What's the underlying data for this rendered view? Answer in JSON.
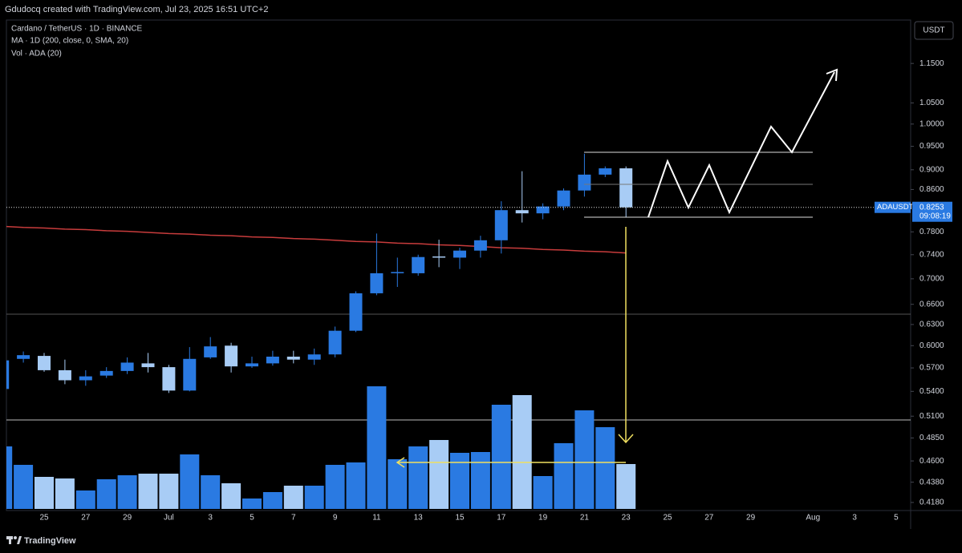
{
  "header": {
    "text": "Gdudocq created with TradingView.com, Jul 23, 2025 16:51 UTC+2"
  },
  "footer": {
    "brand": "TradingView"
  },
  "chart_data": {
    "type": "candlestick",
    "legend": [
      "Cardano / TetherUS · 1D · BINANCE",
      "MA · 1D (200, close, 0, SMA, 20)",
      "Vol · ADA (20)"
    ],
    "currency": "USDT",
    "symbol": "ADAUSDT",
    "last_price": 0.8253,
    "countdown": "09:08:19",
    "up_color": "#2a7ae2",
    "down_color": "#a8ccf5",
    "ma_color": "#c83c3c",
    "log_scale": true,
    "categories": [
      null,
      null,
      "25",
      null,
      "27",
      null,
      "29",
      null,
      "Jul",
      null,
      "3",
      null,
      "5",
      null,
      "7",
      null,
      "9",
      null,
      "11",
      null,
      "13",
      null,
      "15",
      null,
      "17",
      null,
      "19",
      null,
      "21",
      null,
      "23",
      null,
      "25",
      null,
      "27",
      null,
      "29",
      null,
      null,
      "Aug",
      null,
      "3",
      null,
      "5"
    ],
    "open": [
      0.543,
      0.582,
      0.586,
      0.567,
      0.554,
      0.56,
      0.566,
      0.576,
      0.571,
      0.541,
      0.584,
      0.6,
      0.572,
      0.576,
      0.585,
      0.581,
      0.588,
      0.621,
      0.677,
      0.709,
      0.709,
      0.737,
      0.735,
      0.747,
      0.765,
      0.82,
      0.814,
      0.827,
      0.858,
      0.89,
      0.903,
      null,
      null,
      null,
      null,
      null,
      null,
      null,
      null,
      null,
      null,
      null,
      null,
      null
    ],
    "high": [
      0.582,
      0.592,
      0.59,
      0.581,
      0.567,
      0.571,
      0.584,
      0.59,
      0.574,
      0.598,
      0.612,
      0.604,
      0.585,
      0.593,
      0.593,
      0.596,
      0.627,
      0.68,
      0.777,
      0.735,
      0.74,
      0.766,
      0.752,
      0.773,
      0.837,
      0.897,
      0.833,
      0.862,
      0.934,
      0.907,
      0.907,
      null,
      null,
      null,
      null,
      null,
      null,
      null,
      null,
      null,
      null,
      null,
      null,
      null
    ],
    "low": [
      0.542,
      0.577,
      0.565,
      0.549,
      0.547,
      0.557,
      0.562,
      0.564,
      0.538,
      0.54,
      0.582,
      0.564,
      0.57,
      0.573,
      0.576,
      0.574,
      0.584,
      0.619,
      0.674,
      0.687,
      0.705,
      0.719,
      0.716,
      0.735,
      0.742,
      0.797,
      0.803,
      0.82,
      0.846,
      0.885,
      0.806,
      null,
      null,
      null,
      null,
      null,
      null,
      null,
      null,
      null,
      null,
      null,
      null,
      null
    ],
    "close": [
      0.58,
      0.587,
      0.567,
      0.554,
      0.559,
      0.566,
      0.577,
      0.571,
      0.541,
      0.582,
      0.599,
      0.572,
      0.576,
      0.585,
      0.581,
      0.588,
      0.621,
      0.677,
      0.709,
      0.711,
      0.736,
      0.735,
      0.747,
      0.765,
      0.82,
      0.814,
      0.827,
      0.858,
      0.89,
      0.903,
      0.8253,
      null,
      null,
      null,
      null,
      null,
      null,
      null,
      null,
      null,
      null,
      null,
      null,
      null
    ],
    "volume": [
      78,
      55,
      40,
      38,
      23,
      37,
      42,
      44,
      44,
      68,
      42,
      32,
      13,
      21,
      29,
      29,
      55,
      58,
      153,
      62,
      78,
      86,
      70,
      71,
      130,
      142,
      41,
      82,
      123,
      102,
      56,
      null,
      null,
      null,
      null,
      null,
      null,
      null,
      null,
      null,
      null,
      null,
      null,
      null
    ],
    "ma": [
      0.79,
      0.788,
      0.787,
      0.785,
      0.784,
      0.782,
      0.781,
      0.779,
      0.777,
      0.776,
      0.774,
      0.773,
      0.771,
      0.77,
      0.768,
      0.767,
      0.765,
      0.763,
      0.762,
      0.76,
      0.759,
      0.757,
      0.756,
      0.754,
      0.752,
      0.751,
      0.749,
      0.748,
      0.746,
      0.745,
      0.743,
      null,
      null,
      null,
      null,
      null,
      null,
      null,
      null,
      null,
      null,
      null,
      null,
      null
    ],
    "ylim": [
      0.4103,
      1.271
    ],
    "yticks": [
      {
        "value": 1.15,
        "label": "1.1500"
      },
      {
        "value": 1.05,
        "label": "1.0500"
      },
      {
        "value": 1.0,
        "label": "1.0000"
      },
      {
        "value": 0.95,
        "label": "0.9500"
      },
      {
        "value": 0.9,
        "label": "0.9000"
      },
      {
        "value": 0.86,
        "label": "0.8600"
      },
      {
        "value": 0.78,
        "label": "0.7800"
      },
      {
        "value": 0.74,
        "label": "0.7400"
      },
      {
        "value": 0.7,
        "label": "0.7000"
      },
      {
        "value": 0.66,
        "label": "0.6600"
      },
      {
        "value": 0.63,
        "label": "0.6300"
      },
      {
        "value": 0.6,
        "label": "0.6000"
      },
      {
        "value": 0.57,
        "label": "0.5700"
      },
      {
        "value": 0.54,
        "label": "0.5400"
      },
      {
        "value": 0.51,
        "label": "0.5100"
      },
      {
        "value": 0.485,
        "label": "0.4850"
      },
      {
        "value": 0.46,
        "label": "0.4600"
      },
      {
        "value": 0.438,
        "label": "0.4380"
      },
      {
        "value": 0.418,
        "label": "0.4180"
      }
    ]
  }
}
